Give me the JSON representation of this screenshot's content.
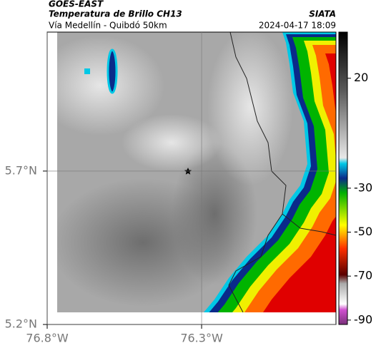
{
  "header": {
    "title": "GOES-EAST",
    "subtitle": "Temperatura de Brillo CH13",
    "location": "Vía Medellín - Quibdó 50km",
    "org": "SIATA",
    "timestamp": "2024-04-17 18:09"
  },
  "map": {
    "lat_lim": [
      5.2,
      6.153
    ],
    "lon_lim": [
      -76.8,
      -75.865
    ],
    "lat_ticks": [
      {
        "value": 5.2,
        "label": "5.2°N"
      },
      {
        "value": 5.7,
        "label": "5.7°N"
      }
    ],
    "lon_ticks": [
      {
        "value": -76.8,
        "label": "76.8°W"
      },
      {
        "value": -76.3,
        "label": "76.3°W"
      }
    ],
    "grid": true
  },
  "colorbar": {
    "lim": [
      -92,
      41
    ],
    "ticks": [
      20,
      -30,
      -50,
      -70,
      -90
    ]
  }
}
